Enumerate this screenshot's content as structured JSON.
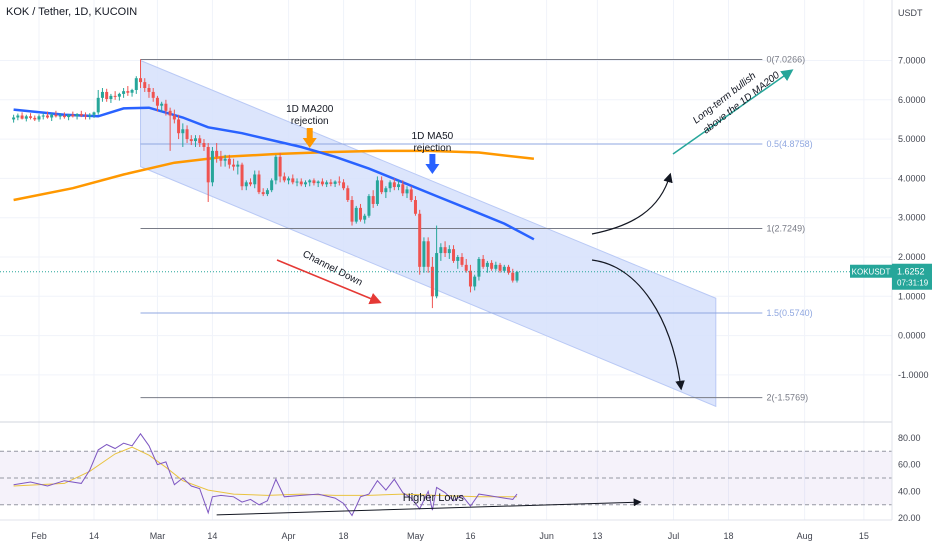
{
  "header": {
    "title": "KOK / Tether, 1D, KUCOIN"
  },
  "price_axis": {
    "unit": "USDT",
    "ticks": [
      {
        "value": 7,
        "label": "7.0000"
      },
      {
        "value": 6,
        "label": "6.0000"
      },
      {
        "value": 5,
        "label": "5.0000"
      },
      {
        "value": 4,
        "label": "4.0000"
      },
      {
        "value": 3,
        "label": "3.0000"
      },
      {
        "value": 2,
        "label": "2.0000"
      },
      {
        "value": 1,
        "label": "1.0000"
      },
      {
        "value": 0,
        "label": "0.0000"
      },
      {
        "value": -1,
        "label": "-1.0000"
      }
    ],
    "symbol_badge": "KOKUSDT",
    "last_price": "1.6252",
    "countdown": "07:31:19"
  },
  "rsi_axis": {
    "ticks": [
      {
        "value": 80,
        "label": "80.00"
      },
      {
        "value": 60,
        "label": "60.00"
      },
      {
        "value": 40,
        "label": "40.00"
      },
      {
        "value": 20,
        "label": "20.00"
      }
    ]
  },
  "time_axis": {
    "ticks": [
      {
        "day": 0,
        "label": "Feb"
      },
      {
        "day": 13,
        "label": "14"
      },
      {
        "day": 28,
        "label": "Mar"
      },
      {
        "day": 41,
        "label": "14"
      },
      {
        "day": 59,
        "label": "Apr"
      },
      {
        "day": 72,
        "label": "18"
      },
      {
        "day": 89,
        "label": "May"
      },
      {
        "day": 102,
        "label": "16"
      },
      {
        "day": 120,
        "label": "Jun"
      },
      {
        "day": 132,
        "label": "13"
      },
      {
        "day": 150,
        "label": "Jul"
      },
      {
        "day": 163,
        "label": "18"
      },
      {
        "day": 181,
        "label": "Aug"
      },
      {
        "day": 195,
        "label": "15"
      }
    ]
  },
  "fib_levels": [
    {
      "value": 7.0266,
      "label": "0(7.0266)"
    },
    {
      "value": 4.8758,
      "label": "0.5(4.8758)"
    },
    {
      "value": 2.7249,
      "label": "1(2.7249)"
    },
    {
      "value": 0.574,
      "label": "1.5(0.5740)"
    },
    {
      "value": -1.5769,
      "label": "2(-1.5769)"
    }
  ],
  "annotations": {
    "ma200_rejection_line1": "1D MA200",
    "ma200_rejection_line2": "rejection",
    "ma50_rejection_line1": "1D MA50",
    "ma50_rejection_line2": "rejection",
    "channel_down": "Channel Down",
    "bullish_line1": "Long-term bullish",
    "bullish_line2": "above the 1D MA200",
    "higher_lows": "Higher Lows"
  },
  "colors": {
    "up": "#26a69a",
    "down": "#ef5350",
    "ma50": "#2962ff",
    "ma200": "#ff9800",
    "channel": "#d6e0fb",
    "rsi": "#7e57c2",
    "rsi_ma": "#e9c341",
    "ma200_arrow": "#ff9800",
    "ma50_arrow": "#2962ff",
    "bullish_arrow": "#26a69a",
    "channel_arrow": "#e53935"
  },
  "chart_data": {
    "type": "candlestick",
    "title": "KOK / Tether, 1D, KUCOIN",
    "x_unit": "days since Feb 1",
    "ohlc": [
      [
        -6,
        5.5,
        5.62,
        5.42,
        5.55
      ],
      [
        -5,
        5.55,
        5.65,
        5.48,
        5.6
      ],
      [
        -4,
        5.6,
        5.68,
        5.5,
        5.52
      ],
      [
        -3,
        5.52,
        5.62,
        5.45,
        5.58
      ],
      [
        -2,
        5.58,
        5.66,
        5.5,
        5.54
      ],
      [
        -1,
        5.54,
        5.6,
        5.46,
        5.5
      ],
      [
        0,
        5.5,
        5.63,
        5.44,
        5.58
      ],
      [
        1,
        5.58,
        5.66,
        5.5,
        5.6
      ],
      [
        2,
        5.6,
        5.7,
        5.52,
        5.55
      ],
      [
        3,
        5.55,
        5.66,
        5.46,
        5.62
      ],
      [
        4,
        5.62,
        5.72,
        5.55,
        5.58
      ],
      [
        5,
        5.58,
        5.66,
        5.5,
        5.6
      ],
      [
        6,
        5.6,
        5.68,
        5.52,
        5.56
      ],
      [
        7,
        5.56,
        5.64,
        5.48,
        5.62
      ],
      [
        8,
        5.62,
        5.7,
        5.55,
        5.58
      ],
      [
        9,
        5.58,
        5.66,
        5.5,
        5.64
      ],
      [
        10,
        5.64,
        5.72,
        5.56,
        5.6
      ],
      [
        11,
        5.6,
        5.68,
        5.5,
        5.58
      ],
      [
        12,
        5.58,
        5.66,
        5.5,
        5.62
      ],
      [
        13,
        5.62,
        5.7,
        5.54,
        5.68
      ],
      [
        14,
        5.68,
        6.25,
        5.62,
        6.05
      ],
      [
        15,
        6.05,
        6.3,
        5.95,
        6.2
      ],
      [
        16,
        6.2,
        6.28,
        5.95,
        6.02
      ],
      [
        17,
        6.02,
        6.15,
        5.92,
        6.1
      ],
      [
        18,
        6.1,
        6.22,
        6.0,
        6.08
      ],
      [
        19,
        6.08,
        6.18,
        5.98,
        6.15
      ],
      [
        20,
        6.15,
        6.3,
        6.05,
        6.22
      ],
      [
        21,
        6.22,
        6.35,
        6.1,
        6.18
      ],
      [
        22,
        6.18,
        6.28,
        6.08,
        6.25
      ],
      [
        23,
        6.25,
        6.6,
        6.15,
        6.55
      ],
      [
        24,
        6.55,
        7.03,
        6.3,
        6.45
      ],
      [
        25,
        6.45,
        6.55,
        6.2,
        6.3
      ],
      [
        26,
        6.3,
        6.4,
        6.05,
        6.2
      ],
      [
        27,
        6.2,
        6.3,
        5.95,
        6.05
      ],
      [
        28,
        6.05,
        6.1,
        5.7,
        5.85
      ],
      [
        29,
        5.85,
        5.95,
        5.7,
        5.9
      ],
      [
        30,
        5.9,
        6.0,
        5.6,
        5.72
      ],
      [
        31,
        5.72,
        5.8,
        4.7,
        5.6
      ],
      [
        32,
        5.6,
        5.75,
        5.4,
        5.5
      ],
      [
        33,
        5.5,
        5.62,
        5.0,
        5.15
      ],
      [
        34,
        5.15,
        5.4,
        4.8,
        5.25
      ],
      [
        35,
        5.25,
        5.35,
        4.9,
        5.0
      ],
      [
        36,
        5.0,
        5.1,
        4.85,
        4.95
      ],
      [
        37,
        4.95,
        5.1,
        4.8,
        5.02
      ],
      [
        38,
        5.02,
        5.1,
        4.8,
        4.9
      ],
      [
        39,
        4.9,
        5.0,
        4.7,
        4.8
      ],
      [
        40,
        4.8,
        4.9,
        3.4,
        3.9
      ],
      [
        41,
        3.9,
        4.8,
        3.8,
        4.7
      ],
      [
        42,
        4.7,
        4.9,
        4.4,
        4.55
      ],
      [
        43,
        4.55,
        4.7,
        4.3,
        4.45
      ],
      [
        44,
        4.45,
        4.6,
        4.3,
        4.5
      ],
      [
        45,
        4.5,
        4.6,
        4.25,
        4.35
      ],
      [
        46,
        4.35,
        4.5,
        4.2,
        4.3
      ],
      [
        47,
        4.3,
        4.45,
        4.1,
        4.35
      ],
      [
        48,
        4.35,
        4.4,
        3.7,
        3.8
      ],
      [
        49,
        3.8,
        3.95,
        3.7,
        3.9
      ],
      [
        50,
        3.9,
        4.0,
        3.8,
        3.85
      ],
      [
        51,
        3.85,
        4.2,
        3.75,
        4.1
      ],
      [
        52,
        4.1,
        4.2,
        3.6,
        3.65
      ],
      [
        53,
        3.65,
        3.75,
        3.55,
        3.6
      ],
      [
        54,
        3.6,
        3.75,
        3.55,
        3.7
      ],
      [
        55,
        3.7,
        4.0,
        3.65,
        3.95
      ],
      [
        56,
        3.95,
        4.6,
        3.85,
        4.55
      ],
      [
        57,
        4.55,
        4.65,
        3.9,
        4.05
      ],
      [
        58,
        4.05,
        4.15,
        3.9,
        3.95
      ],
      [
        59,
        3.95,
        4.05,
        3.85,
        4.0
      ],
      [
        60,
        4.0,
        4.1,
        3.85,
        3.9
      ],
      [
        61,
        3.9,
        4.0,
        3.8,
        3.92
      ],
      [
        62,
        3.92,
        4.0,
        3.8,
        3.85
      ],
      [
        63,
        3.85,
        3.95,
        3.78,
        3.9
      ],
      [
        64,
        3.9,
        3.98,
        3.8,
        3.95
      ],
      [
        65,
        3.95,
        4.0,
        3.82,
        3.88
      ],
      [
        66,
        3.88,
        3.95,
        3.78,
        3.92
      ],
      [
        67,
        3.92,
        4.0,
        3.8,
        3.85
      ],
      [
        68,
        3.85,
        3.95,
        3.78,
        3.9
      ],
      [
        69,
        3.9,
        3.98,
        3.8,
        3.86
      ],
      [
        70,
        3.86,
        3.95,
        3.78,
        3.92
      ],
      [
        71,
        3.92,
        4.05,
        3.82,
        3.9
      ],
      [
        72,
        3.9,
        3.98,
        3.7,
        3.75
      ],
      [
        73,
        3.75,
        3.82,
        3.4,
        3.45
      ],
      [
        74,
        3.45,
        3.55,
        2.8,
        2.9
      ],
      [
        75,
        2.9,
        3.3,
        2.85,
        3.25
      ],
      [
        76,
        3.25,
        3.35,
        2.9,
        2.95
      ],
      [
        77,
        2.95,
        3.1,
        2.85,
        3.05
      ],
      [
        78,
        3.05,
        3.6,
        3.0,
        3.55
      ],
      [
        79,
        3.55,
        3.7,
        3.25,
        3.35
      ],
      [
        80,
        3.35,
        4.05,
        3.3,
        3.95
      ],
      [
        81,
        3.95,
        4.05,
        3.6,
        3.65
      ],
      [
        82,
        3.65,
        3.8,
        3.5,
        3.75
      ],
      [
        83,
        3.75,
        3.95,
        3.65,
        3.9
      ],
      [
        84,
        3.9,
        4.0,
        3.7,
        3.78
      ],
      [
        85,
        3.78,
        3.95,
        3.7,
        3.85
      ],
      [
        86,
        3.85,
        3.95,
        3.55,
        3.62
      ],
      [
        87,
        3.62,
        3.8,
        3.5,
        3.72
      ],
      [
        88,
        3.72,
        3.8,
        3.4,
        3.45
      ],
      [
        89,
        3.45,
        3.55,
        3.05,
        3.1
      ],
      [
        90,
        3.1,
        3.2,
        1.55,
        1.75
      ],
      [
        91,
        1.75,
        2.5,
        1.6,
        2.4
      ],
      [
        92,
        2.4,
        2.5,
        1.6,
        1.75
      ],
      [
        93,
        1.75,
        2.0,
        0.7,
        1.0
      ],
      [
        94,
        1.0,
        2.8,
        0.95,
        2.1
      ],
      [
        95,
        2.1,
        2.35,
        1.9,
        2.25
      ],
      [
        96,
        2.25,
        2.4,
        2.0,
        2.1
      ],
      [
        97,
        2.1,
        2.3,
        1.95,
        2.2
      ],
      [
        98,
        2.2,
        2.3,
        1.85,
        1.9
      ],
      [
        99,
        1.9,
        2.05,
        1.7,
        2.0
      ],
      [
        100,
        2.0,
        2.1,
        1.75,
        1.8
      ],
      [
        101,
        1.8,
        1.95,
        1.6,
        1.65
      ],
      [
        102,
        1.65,
        1.8,
        1.1,
        1.25
      ],
      [
        103,
        1.25,
        1.55,
        1.15,
        1.5
      ],
      [
        104,
        1.5,
        2.0,
        1.4,
        1.95
      ],
      [
        105,
        1.95,
        2.05,
        1.7,
        1.75
      ],
      [
        106,
        1.75,
        1.9,
        1.6,
        1.85
      ],
      [
        107,
        1.85,
        1.92,
        1.65,
        1.7
      ],
      [
        108,
        1.7,
        1.88,
        1.65,
        1.8
      ],
      [
        109,
        1.8,
        1.85,
        1.6,
        1.65
      ],
      [
        110,
        1.65,
        1.8,
        1.6,
        1.75
      ],
      [
        111,
        1.75,
        1.8,
        1.55,
        1.6
      ],
      [
        112,
        1.6,
        1.7,
        1.35,
        1.4
      ],
      [
        113,
        1.4,
        1.65,
        1.35,
        1.62
      ]
    ],
    "ma50": [
      [
        -6,
        5.75
      ],
      [
        6,
        5.62
      ],
      [
        14,
        5.58
      ],
      [
        20,
        5.78
      ],
      [
        26,
        5.8
      ],
      [
        34,
        5.55
      ],
      [
        40,
        5.3
      ],
      [
        48,
        5.15
      ],
      [
        56,
        4.95
      ],
      [
        62,
        4.8
      ],
      [
        70,
        4.55
      ],
      [
        78,
        4.25
      ],
      [
        86,
        3.9
      ],
      [
        94,
        3.55
      ],
      [
        102,
        3.2
      ],
      [
        110,
        2.85
      ],
      [
        117,
        2.45
      ]
    ],
    "ma200": [
      [
        -6,
        3.45
      ],
      [
        8,
        3.75
      ],
      [
        20,
        4.1
      ],
      [
        32,
        4.4
      ],
      [
        44,
        4.55
      ],
      [
        56,
        4.62
      ],
      [
        68,
        4.67
      ],
      [
        80,
        4.7
      ],
      [
        92,
        4.7
      ],
      [
        104,
        4.66
      ],
      [
        117,
        4.5
      ]
    ],
    "rsi": [
      [
        -6,
        45
      ],
      [
        -2,
        47
      ],
      [
        2,
        44
      ],
      [
        6,
        48
      ],
      [
        10,
        46
      ],
      [
        12,
        56
      ],
      [
        14,
        71
      ],
      [
        16,
        75
      ],
      [
        18,
        72
      ],
      [
        20,
        76
      ],
      [
        22,
        74
      ],
      [
        24,
        83
      ],
      [
        26,
        74
      ],
      [
        28,
        60
      ],
      [
        30,
        62
      ],
      [
        32,
        45
      ],
      [
        34,
        50
      ],
      [
        36,
        44
      ],
      [
        38,
        42
      ],
      [
        40,
        24
      ],
      [
        41,
        36
      ],
      [
        43,
        37
      ],
      [
        46,
        36
      ],
      [
        48,
        32
      ],
      [
        50,
        34
      ],
      [
        52,
        30
      ],
      [
        54,
        33
      ],
      [
        56,
        49
      ],
      [
        58,
        36
      ],
      [
        62,
        37
      ],
      [
        66,
        38
      ],
      [
        70,
        35
      ],
      [
        72,
        31
      ],
      [
        74,
        22
      ],
      [
        76,
        36
      ],
      [
        78,
        38
      ],
      [
        80,
        48
      ],
      [
        82,
        41
      ],
      [
        84,
        49
      ],
      [
        86,
        39
      ],
      [
        88,
        35
      ],
      [
        90,
        27
      ],
      [
        92,
        40
      ],
      [
        93,
        26
      ],
      [
        94,
        43
      ],
      [
        96,
        39
      ],
      [
        98,
        33
      ],
      [
        100,
        37
      ],
      [
        102,
        29
      ],
      [
        104,
        38
      ],
      [
        106,
        37
      ],
      [
        108,
        36
      ],
      [
        110,
        35
      ],
      [
        112,
        34
      ],
      [
        113,
        38
      ]
    ],
    "rsi_ma": [
      [
        -6,
        44
      ],
      [
        6,
        46
      ],
      [
        12,
        55
      ],
      [
        18,
        68
      ],
      [
        22,
        73
      ],
      [
        26,
        67
      ],
      [
        30,
        58
      ],
      [
        34,
        48
      ],
      [
        40,
        41
      ],
      [
        46,
        38
      ],
      [
        54,
        37
      ],
      [
        62,
        38
      ],
      [
        70,
        37
      ],
      [
        78,
        37
      ],
      [
        86,
        38
      ],
      [
        94,
        37
      ],
      [
        104,
        36
      ],
      [
        113,
        36
      ]
    ],
    "rsi_range": [
      30,
      70
    ],
    "ylim": [
      -1.8,
      8.0
    ],
    "rsi_ylim": [
      15,
      90
    ],
    "last_price": 1.6252
  }
}
